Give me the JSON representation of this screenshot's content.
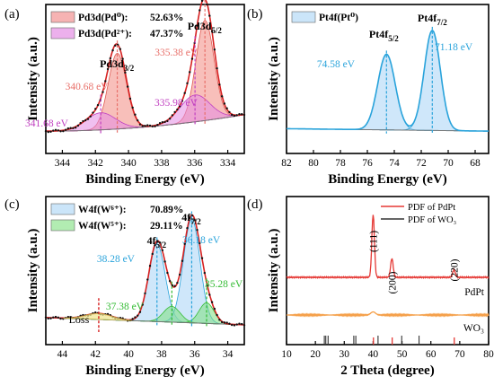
{
  "chart_data": [
    {
      "panel_label": "(a)",
      "type": "line",
      "xlabel": "Binding Energy (eV)",
      "ylabel": "Intensity (a.u.)",
      "xlim": [
        345,
        333
      ],
      "x_ticks": [
        "344",
        "342",
        "340",
        "338",
        "336",
        "334"
      ],
      "x_reversed": true,
      "legend": [
        {
          "label": "Pd3d(Pd⁰):",
          "value": "52.63%",
          "color": "#f08080"
        },
        {
          "label": "Pd3d(Pd²⁺):",
          "value": "47.37%",
          "color": "#e07ce0"
        }
      ],
      "peak_labels": [
        {
          "text": "Pd3d3/2",
          "x": 340.7
        },
        {
          "text": "Pd3d5/2",
          "x": 335.4
        }
      ],
      "annotations": [
        {
          "text": "340.68 eV",
          "x": 340.68,
          "color": "#e8706a"
        },
        {
          "text": "335.38 eV",
          "x": 335.38,
          "color": "#e8706a"
        },
        {
          "text": "341.68 eV",
          "x": 341.68,
          "color": "#c040c0"
        },
        {
          "text": "335.98 eV",
          "x": 335.98,
          "color": "#c040c0"
        }
      ],
      "series": [
        {
          "name": "Pd3d(Pd⁰)",
          "peaks": [
            {
              "center": 340.68,
              "height": 0.62,
              "width": 0.55
            },
            {
              "center": 335.38,
              "height": 0.82,
              "width": 0.55
            }
          ]
        },
        {
          "name": "Pd3d(Pd²⁺)",
          "peaks": [
            {
              "center": 341.68,
              "height": 0.14,
              "width": 0.9
            },
            {
              "center": 335.98,
              "height": 0.22,
              "width": 0.9
            }
          ]
        }
      ]
    },
    {
      "panel_label": "(b)",
      "type": "line",
      "xlabel": "Binding Energy (eV)",
      "ylabel": "Intensity (a.u.)",
      "xlim": [
        82,
        67
      ],
      "x_ticks": [
        "82",
        "80",
        "78",
        "76",
        "74",
        "72",
        "70",
        "68"
      ],
      "x_reversed": true,
      "legend": [
        {
          "label": "Pt4f(Pt⁰)",
          "color": "#a8d4f5"
        }
      ],
      "peak_labels": [
        {
          "text": "Pt4f5/2",
          "x": 74.58
        },
        {
          "text": "Pt4f7/2",
          "x": 71.18
        }
      ],
      "annotations": [
        {
          "text": "74.58 eV",
          "x": 74.58,
          "color": "#29a3db"
        },
        {
          "text": "71.18 eV",
          "x": 71.18,
          "color": "#29a3db"
        }
      ],
      "series": [
        {
          "name": "Pt4f(Pt⁰)",
          "peaks": [
            {
              "center": 74.58,
              "height": 0.62,
              "width": 0.65
            },
            {
              "center": 71.18,
              "height": 0.82,
              "width": 0.6
            }
          ]
        }
      ]
    },
    {
      "panel_label": "(c)",
      "type": "line",
      "xlabel": "Binding Energy (eV)",
      "ylabel": "Intensity (a.u.)",
      "xlim": [
        45,
        33
      ],
      "x_ticks": [
        "44",
        "42",
        "40",
        "38",
        "36",
        "34"
      ],
      "x_reversed": true,
      "legend": [
        {
          "label": "W4f(W⁶⁺):",
          "value": "70.89%",
          "color": "#a8d4f5"
        },
        {
          "label": "W4f(W⁵⁺):",
          "value": "29.11%",
          "color": "#7ee07e"
        }
      ],
      "peak_labels": [
        {
          "text": "4f5/2",
          "x": 38.3
        },
        {
          "text": "4f7/2",
          "x": 36.2
        },
        {
          "text": "Loss",
          "x": 41.8
        }
      ],
      "annotations": [
        {
          "text": "38.28 eV",
          "x": 38.28,
          "color": "#29a3db"
        },
        {
          "text": "36.18 eV",
          "x": 36.18,
          "color": "#29a3db"
        },
        {
          "text": "37.38 eV",
          "x": 37.38,
          "color": "#33bb33"
        },
        {
          "text": "35.28 eV",
          "x": 35.28,
          "color": "#33bb33"
        }
      ],
      "series": [
        {
          "name": "W4f(W⁶⁺)",
          "peaks": [
            {
              "center": 38.28,
              "height": 0.64,
              "width": 0.5
            },
            {
              "center": 36.18,
              "height": 0.86,
              "width": 0.5
            }
          ]
        },
        {
          "name": "W4f(W⁵⁺)",
          "peaks": [
            {
              "center": 37.38,
              "height": 0.13,
              "width": 0.5
            },
            {
              "center": 35.28,
              "height": 0.17,
              "width": 0.45
            }
          ]
        }
      ]
    },
    {
      "panel_label": "(d)",
      "type": "line",
      "xlabel": "2 Theta (degree)",
      "ylabel": "Intensity (a.u.)",
      "xlim": [
        10,
        80
      ],
      "x_ticks": [
        "10",
        "20",
        "30",
        "40",
        "50",
        "60",
        "70",
        "80"
      ],
      "legend": [
        {
          "label": "PDF of PdPt",
          "color": "#e53935"
        },
        {
          "label": "PDF of WO₃",
          "color": "#333333"
        }
      ],
      "series": [
        {
          "name": "PdPt",
          "color": "#e53935",
          "peaks": [
            {
              "center": 40.0,
              "height": 1.0
            },
            {
              "center": 46.5,
              "height": 0.3
            },
            {
              "center": 68.0,
              "height": 0.12
            }
          ]
        },
        {
          "name": "WO₃",
          "color": "#f5a04a",
          "peaks": [
            {
              "center": 40.0,
              "height": 0.05
            }
          ]
        }
      ],
      "peak_labels": [
        {
          "text": "(111)",
          "x": 40.0
        },
        {
          "text": "(200)",
          "x": 46.5
        },
        {
          "text": "(220)",
          "x": 68.0
        }
      ],
      "reference_lines": [
        {
          "name": "PDF of PdPt",
          "positions": [
            40.1,
            46.6,
            68.1
          ]
        },
        {
          "name": "PDF of WO₃",
          "positions": [
            23.1,
            23.6,
            24.4,
            33.3,
            34.0,
            41.7,
            49.9,
            55.9
          ]
        }
      ]
    }
  ]
}
